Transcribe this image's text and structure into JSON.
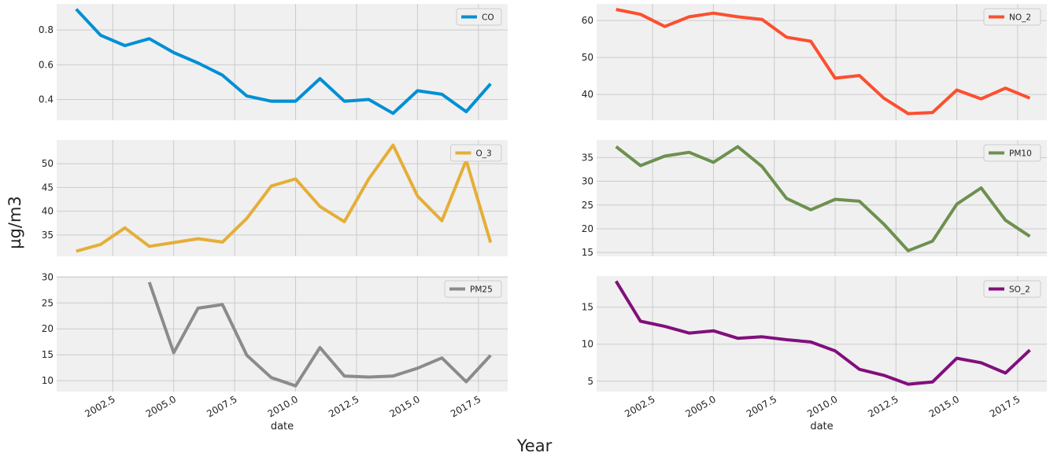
{
  "figure": {
    "supxlabel": "Year",
    "supylabel": "µg/m3"
  },
  "chart_data": [
    {
      "type": "line",
      "legend_position": "top-right",
      "grid": true,
      "series": [
        {
          "name": "CO",
          "color": "#008fd5",
          "x": [
            2001,
            2002,
            2003,
            2004,
            2005,
            2006,
            2007,
            2008,
            2009,
            2010,
            2011,
            2012,
            2013,
            2014,
            2015,
            2016,
            2017,
            2018
          ],
          "values": [
            0.92,
            0.77,
            0.71,
            0.75,
            0.67,
            0.61,
            0.54,
            0.42,
            0.39,
            0.39,
            0.52,
            0.39,
            0.4,
            0.32,
            0.45,
            0.43,
            0.33,
            0.49
          ]
        }
      ],
      "ylim": [
        0.28,
        0.95
      ],
      "yticks": [
        0.4,
        0.6,
        0.8
      ],
      "ytick_labels": [
        "0.4",
        "0.6",
        "0.8"
      ],
      "xlim": [
        2000.2,
        2018.7
      ],
      "xticks": [
        2002.5,
        2005.0,
        2007.5,
        2010.0,
        2012.5,
        2015.0,
        2017.5
      ],
      "xtick_labels": [],
      "xlabel": ""
    },
    {
      "type": "line",
      "legend_position": "top-right",
      "grid": true,
      "series": [
        {
          "name": "NO_2",
          "color": "#fc4f30",
          "x": [
            2001,
            2002,
            2003,
            2004,
            2005,
            2006,
            2007,
            2008,
            2009,
            2010,
            2011,
            2012,
            2013,
            2014,
            2015,
            2016,
            2017,
            2018
          ],
          "values": [
            63.0,
            61.7,
            58.4,
            61.0,
            62.0,
            61.0,
            60.3,
            55.5,
            54.4,
            44.4,
            45.1,
            39.0,
            34.8,
            35.1,
            41.2,
            38.8,
            41.7,
            39.0
          ]
        }
      ],
      "ylim": [
        33.0,
        64.5
      ],
      "yticks": [
        40,
        50,
        60
      ],
      "ytick_labels": [
        "40",
        "50",
        "60"
      ],
      "xlim": [
        2000.2,
        2018.7
      ],
      "xticks": [
        2002.5,
        2005.0,
        2007.5,
        2010.0,
        2012.5,
        2015.0,
        2017.5
      ],
      "xtick_labels": [],
      "xlabel": ""
    },
    {
      "type": "line",
      "legend_position": "top-right",
      "grid": true,
      "series": [
        {
          "name": "O_3",
          "color": "#e5ae38",
          "x": [
            2001,
            2002,
            2003,
            2004,
            2005,
            2006,
            2007,
            2008,
            2009,
            2010,
            2011,
            2012,
            2013,
            2014,
            2015,
            2016,
            2017,
            2018
          ],
          "values": [
            31.6,
            33.0,
            36.5,
            32.6,
            33.4,
            34.2,
            33.5,
            38.5,
            45.3,
            46.8,
            41.0,
            37.8,
            46.8,
            53.9,
            43.2,
            38.0,
            50.7,
            33.4
          ]
        }
      ],
      "ylim": [
        30.5,
        55.0
      ],
      "yticks": [
        35,
        40,
        45,
        50
      ],
      "ytick_labels": [
        "35",
        "40",
        "45",
        "50"
      ],
      "xlim": [
        2000.2,
        2018.7
      ],
      "xticks": [
        2002.5,
        2005.0,
        2007.5,
        2010.0,
        2012.5,
        2015.0,
        2017.5
      ],
      "xtick_labels": [],
      "xlabel": ""
    },
    {
      "type": "line",
      "legend_position": "top-right",
      "grid": true,
      "series": [
        {
          "name": "PM10",
          "color": "#6d904f",
          "x": [
            2001,
            2002,
            2003,
            2004,
            2005,
            2006,
            2007,
            2008,
            2009,
            2010,
            2011,
            2012,
            2013,
            2014,
            2015,
            2016,
            2017,
            2018
          ],
          "values": [
            37.3,
            33.3,
            35.3,
            36.1,
            34.0,
            37.3,
            33.1,
            26.4,
            24.0,
            26.2,
            25.8,
            21.0,
            15.4,
            17.4,
            25.2,
            28.6,
            21.8,
            18.4
          ]
        }
      ],
      "ylim": [
        14.2,
        38.7
      ],
      "yticks": [
        15,
        20,
        25,
        30,
        35
      ],
      "ytick_labels": [
        "15",
        "20",
        "25",
        "30",
        "35"
      ],
      "xlim": [
        2000.2,
        2018.7
      ],
      "xticks": [
        2002.5,
        2005.0,
        2007.5,
        2010.0,
        2012.5,
        2015.0,
        2017.5
      ],
      "xtick_labels": [],
      "xlabel": ""
    },
    {
      "type": "line",
      "legend_position": "top-right",
      "grid": true,
      "series": [
        {
          "name": "PM25",
          "color": "#8b8b8b",
          "x": [
            2004,
            2005,
            2006,
            2007,
            2008,
            2009,
            2010,
            2011,
            2012,
            2013,
            2014,
            2015,
            2016,
            2017,
            2018
          ],
          "values": [
            29.0,
            15.4,
            24.0,
            24.7,
            14.9,
            10.6,
            9.0,
            16.4,
            10.9,
            10.7,
            10.9,
            12.4,
            14.4,
            9.8,
            14.9
          ]
        }
      ],
      "ylim": [
        7.9,
        30.2
      ],
      "yticks": [
        10,
        15,
        20,
        25,
        30
      ],
      "ytick_labels": [
        "10",
        "15",
        "20",
        "25",
        "30"
      ],
      "xlim": [
        2000.2,
        2018.7
      ],
      "xticks": [
        2002.5,
        2005.0,
        2007.5,
        2010.0,
        2012.5,
        2015.0,
        2017.5
      ],
      "xtick_labels": [
        "2002.5",
        "2005.0",
        "2007.5",
        "2010.0",
        "2012.5",
        "2015.0",
        "2017.5"
      ],
      "xlabel": "date"
    },
    {
      "type": "line",
      "legend_position": "top-right",
      "grid": true,
      "series": [
        {
          "name": "SO_2",
          "color": "#810f7c",
          "x": [
            2001,
            2002,
            2003,
            2004,
            2005,
            2006,
            2007,
            2008,
            2009,
            2010,
            2011,
            2012,
            2013,
            2014,
            2015,
            2016,
            2017,
            2018
          ],
          "values": [
            18.5,
            13.1,
            12.4,
            11.5,
            11.8,
            10.8,
            11.0,
            10.6,
            10.3,
            9.1,
            6.6,
            5.8,
            4.6,
            4.9,
            8.1,
            7.5,
            6.1,
            9.2
          ]
        }
      ],
      "ylim": [
        3.6,
        19.2
      ],
      "yticks": [
        5,
        10,
        15
      ],
      "ytick_labels": [
        "5",
        "10",
        "15"
      ],
      "xlim": [
        2000.2,
        2018.7
      ],
      "xticks": [
        2002.5,
        2005.0,
        2007.5,
        2010.0,
        2012.5,
        2015.0,
        2017.5
      ],
      "xtick_labels": [
        "2002.5",
        "2005.0",
        "2007.5",
        "2010.0",
        "2012.5",
        "2015.0",
        "2017.5"
      ],
      "xlabel": "date"
    }
  ]
}
